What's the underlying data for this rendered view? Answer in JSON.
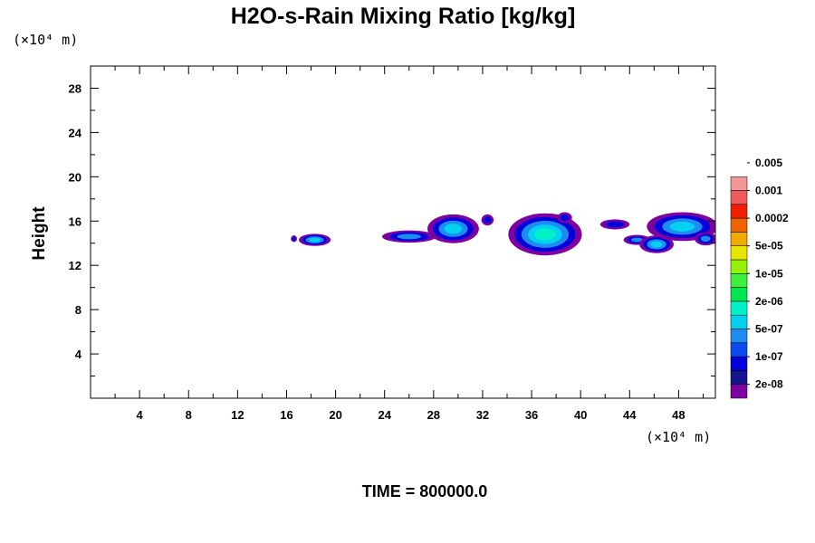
{
  "chart_data": {
    "type": "heatmap",
    "title": "H2O-s-Rain Mixing Ratio [kg/kg]",
    "ylabel": "Height",
    "xlabel": "",
    "x_unit": "(×10⁴ m)",
    "y_unit": "(×10⁴ m)",
    "xlim": [
      0,
      51
    ],
    "ylim": [
      0,
      30
    ],
    "x_ticks": [
      "4",
      "8",
      "12",
      "16",
      "20",
      "24",
      "28",
      "32",
      "36",
      "40",
      "44",
      "48"
    ],
    "y_ticks": [
      "4",
      "8",
      "12",
      "16",
      "20",
      "24",
      "28"
    ],
    "time_text": "TIME = 800000.0",
    "colorbar": {
      "colors": [
        "#7d00a0",
        "#14148c",
        "#0000dc",
        "#0a4bf0",
        "#1e8cf0",
        "#00d2f0",
        "#00f0c8",
        "#00e650",
        "#3cf03c",
        "#96f00a",
        "#e6e600",
        "#f0aa00",
        "#f06400",
        "#f01e00",
        "#f05a5a",
        "#f09696"
      ],
      "labels": [
        "2e-08",
        "1e-07",
        "5e-07",
        "2e-06",
        "1e-05",
        "5e-05",
        "0.0002",
        "0.001",
        "0.005"
      ]
    },
    "regions": [
      {
        "cx": 16.6,
        "cy": 14.4,
        "rx": 0.25,
        "ry": 0.3,
        "colors": [
          "#7d00a0",
          "#0000dc"
        ]
      },
      {
        "cx": 18.3,
        "cy": 14.3,
        "rx": 1.3,
        "ry": 0.55,
        "colors": [
          "#7d00a0",
          "#0000dc",
          "#1e8cf0",
          "#00d2f0"
        ]
      },
      {
        "cx": 26.0,
        "cy": 14.6,
        "rx": 2.2,
        "ry": 0.55,
        "colors": [
          "#7d00a0",
          "#0000dc",
          "#1e8cf0"
        ]
      },
      {
        "cx": 29.6,
        "cy": 15.3,
        "rx": 2.1,
        "ry": 1.3,
        "colors": [
          "#7d00a0",
          "#0000dc",
          "#1e8cf0",
          "#00d2f0"
        ]
      },
      {
        "cx": 32.4,
        "cy": 16.1,
        "rx": 0.5,
        "ry": 0.5,
        "colors": [
          "#7d00a0",
          "#0000dc"
        ]
      },
      {
        "cx": 37.1,
        "cy": 14.8,
        "rx": 3.0,
        "ry": 1.9,
        "colors": [
          "#7d00a0",
          "#0000dc",
          "#1e8cf0",
          "#00d2f0",
          "#00f0c8"
        ]
      },
      {
        "cx": 38.7,
        "cy": 16.3,
        "rx": 0.6,
        "ry": 0.5,
        "colors": [
          "#7d00a0",
          "#0000dc"
        ]
      },
      {
        "cx": 42.8,
        "cy": 15.7,
        "rx": 1.2,
        "ry": 0.45,
        "colors": [
          "#7d00a0",
          "#0000dc"
        ]
      },
      {
        "cx": 44.6,
        "cy": 14.3,
        "rx": 1.1,
        "ry": 0.45,
        "colors": [
          "#7d00a0",
          "#0000dc",
          "#1e8cf0"
        ]
      },
      {
        "cx": 46.2,
        "cy": 13.9,
        "rx": 1.4,
        "ry": 0.8,
        "colors": [
          "#7d00a0",
          "#0000dc",
          "#1e8cf0",
          "#00d2f0"
        ]
      },
      {
        "cx": 48.3,
        "cy": 15.5,
        "rx": 2.9,
        "ry": 1.3,
        "colors": [
          "#7d00a0",
          "#0000dc",
          "#1e8cf0",
          "#00d2f0"
        ]
      },
      {
        "cx": 50.2,
        "cy": 14.4,
        "rx": 0.9,
        "ry": 0.6,
        "colors": [
          "#7d00a0",
          "#0000dc",
          "#1e8cf0"
        ]
      }
    ]
  }
}
